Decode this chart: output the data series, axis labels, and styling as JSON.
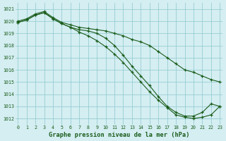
{
  "title": "Graphe pression niveau de la mer (hPa)",
  "bg_color": "#d4eef2",
  "grid_color": "#8cc8cc",
  "line_color": "#1a5c1a",
  "xlim": [
    -0.3,
    23.3
  ],
  "ylim": [
    1011.5,
    1021.5
  ],
  "yticks": [
    1012,
    1013,
    1014,
    1015,
    1016,
    1017,
    1018,
    1019,
    1020,
    1021
  ],
  "xticks": [
    0,
    1,
    2,
    3,
    4,
    5,
    6,
    7,
    8,
    9,
    10,
    11,
    12,
    13,
    14,
    15,
    16,
    17,
    18,
    19,
    20,
    21,
    22,
    23
  ],
  "series1": [
    1020.0,
    1020.2,
    1020.6,
    1020.8,
    1020.3,
    1019.9,
    1019.7,
    1019.5,
    1019.4,
    1019.3,
    1019.2,
    1019.0,
    1018.8,
    1018.5,
    1018.3,
    1018.0,
    1017.5,
    1017.0,
    1016.5,
    1016.0,
    1015.8,
    1015.5,
    1015.2,
    1015.0
  ],
  "series2": [
    1019.9,
    1020.1,
    1020.5,
    1020.7,
    1020.2,
    1019.8,
    1019.5,
    1019.3,
    1019.2,
    1019.0,
    1018.6,
    1018.0,
    1017.2,
    1016.3,
    1015.5,
    1014.7,
    1013.8,
    1013.0,
    1012.5,
    1012.2,
    1012.2,
    1012.5,
    1013.2,
    1013.0
  ],
  "series3": [
    1019.9,
    1020.1,
    1020.5,
    1020.7,
    1020.2,
    1019.8,
    1019.5,
    1019.1,
    1018.8,
    1018.4,
    1017.9,
    1017.3,
    1016.6,
    1015.8,
    1015.0,
    1014.2,
    1013.5,
    1012.9,
    1012.3,
    1012.1,
    1012.0,
    1012.1,
    1012.3,
    1013.0
  ]
}
